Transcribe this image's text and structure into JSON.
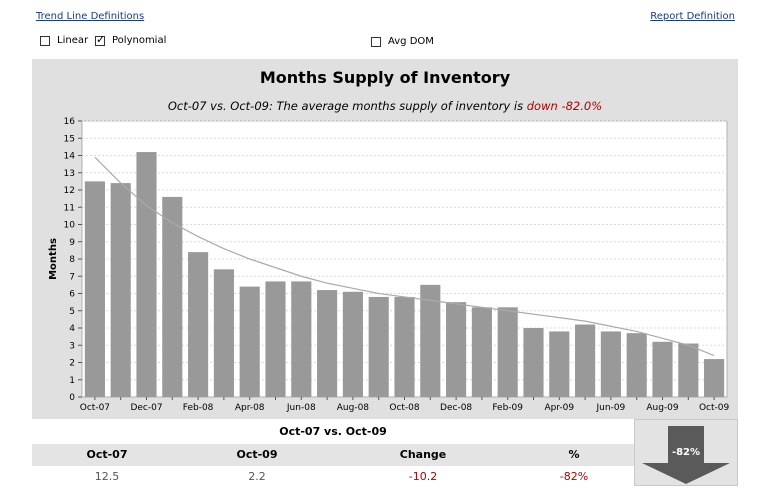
{
  "links": {
    "trend_defs": "Trend Line Definitions",
    "report_def": "Report Definition"
  },
  "options": {
    "linear": {
      "label": "Linear",
      "checked": false
    },
    "polynomial": {
      "label": "Polynomial",
      "checked": true
    },
    "avg_dom": {
      "label": "Avg DOM",
      "checked": false
    }
  },
  "chart_data": {
    "type": "bar",
    "title": "Months Supply of Inventory",
    "subtitle_prefix": "Oct-07 vs. Oct-09: The average months supply of inventory is ",
    "subtitle_direction": "down",
    "subtitle_change": "-82.0%",
    "ylabel": "Months",
    "ylim": [
      0,
      16
    ],
    "yticks": [
      0,
      1,
      2,
      3,
      4,
      5,
      6,
      7,
      8,
      9,
      10,
      11,
      12,
      13,
      14,
      15,
      16
    ],
    "categories": [
      "Oct-07",
      "Nov-07",
      "Dec-07",
      "Jan-08",
      "Feb-08",
      "Mar-08",
      "Apr-08",
      "May-08",
      "Jun-08",
      "Jul-08",
      "Aug-08",
      "Sep-08",
      "Oct-08",
      "Nov-08",
      "Dec-08",
      "Jan-09",
      "Feb-09",
      "Mar-09",
      "Apr-09",
      "May-09",
      "Jun-09",
      "Jul-09",
      "Aug-09",
      "Sep-09",
      "Oct-09"
    ],
    "xtick_labels": [
      "Oct-07",
      "",
      "Dec-07",
      "",
      "Feb-08",
      "",
      "Apr-08",
      "",
      "Jun-08",
      "",
      "Aug-08",
      "",
      "Oct-08",
      "",
      "Dec-08",
      "",
      "Feb-09",
      "",
      "Apr-09",
      "",
      "Jun-09",
      "",
      "Aug-09",
      "",
      "Oct-09"
    ],
    "values": [
      12.5,
      12.4,
      14.2,
      11.6,
      8.4,
      7.4,
      6.4,
      6.7,
      6.7,
      6.2,
      6.1,
      5.8,
      5.8,
      6.5,
      5.5,
      5.2,
      5.2,
      4.0,
      3.8,
      4.2,
      3.8,
      3.7,
      3.2,
      3.1,
      2.2
    ],
    "trend": {
      "type": "polynomial",
      "values": [
        13.9,
        12.4,
        11.1,
        10.1,
        9.3,
        8.6,
        8.0,
        7.5,
        7.0,
        6.6,
        6.3,
        6.0,
        5.8,
        5.6,
        5.4,
        5.2,
        5.0,
        4.8,
        4.6,
        4.4,
        4.1,
        3.8,
        3.4,
        3.0,
        2.4
      ]
    },
    "grid": true,
    "colors": {
      "bar": "#999999",
      "trend": "#aaaaaa",
      "down": "#b00000"
    }
  },
  "summary": {
    "header": "Oct-07 vs. Oct-09",
    "columns": [
      "Oct-07",
      "Oct-09",
      "Change",
      "%"
    ],
    "values": [
      "12.5",
      "2.2",
      "-10.2",
      "-82%"
    ],
    "badge": "-82%"
  }
}
